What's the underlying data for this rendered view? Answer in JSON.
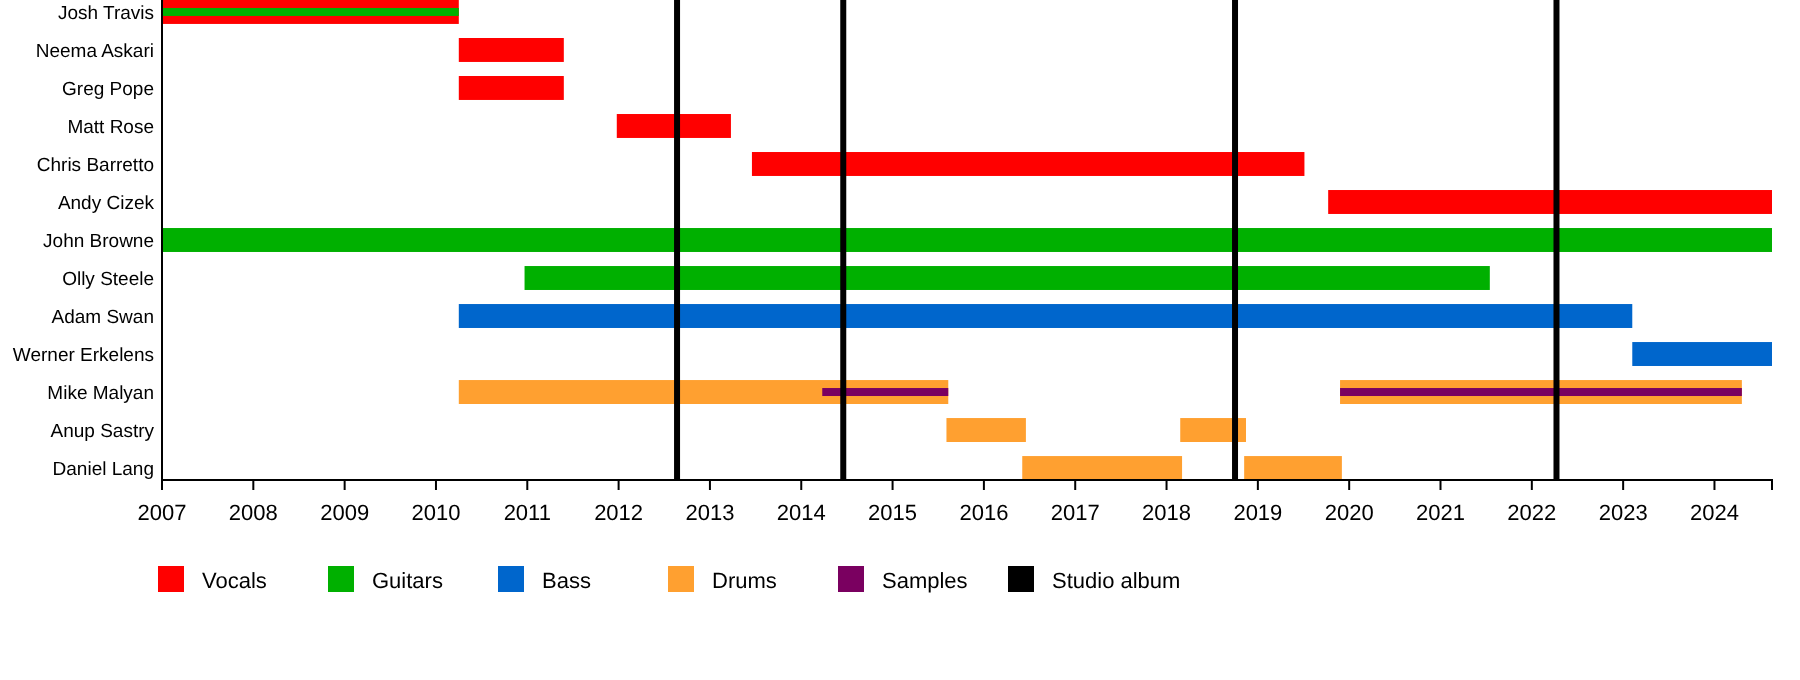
{
  "chart_data": {
    "type": "bar",
    "orientation": "horizontal",
    "categories": [
      "Josh Travis",
      "Neema Askari",
      "Greg Pope",
      "Matt Rose",
      "Chris Barretto",
      "Andy Cizek",
      "John Browne",
      "Olly Steele",
      "Adam Swan",
      "Werner Erkelens",
      "Mike Malyan",
      "Anup Sastry",
      "Daniel Lang"
    ],
    "series": [
      {
        "name": "Vocals",
        "color": "#ff0000",
        "base": [
          2007,
          2010.25,
          2010.25,
          2011.98,
          2013.46,
          2019.77,
          null,
          null,
          null,
          null,
          null,
          null,
          null
        ],
        "values": [
          3.25,
          1.15,
          1.15,
          1.25,
          6.05,
          4.86,
          null,
          null,
          null,
          null,
          null,
          null,
          null
        ]
      },
      {
        "name": "Guitars",
        "color": "#00b000",
        "base": [
          2007,
          null,
          null,
          null,
          null,
          null,
          2007,
          2010.97,
          null,
          null,
          null,
          null,
          null
        ],
        "values": [
          3.25,
          null,
          null,
          null,
          null,
          null,
          17.63,
          10.57,
          null,
          null,
          null,
          null,
          null
        ]
      },
      {
        "name": "Bass",
        "color": "#0066cc",
        "base": [
          null,
          null,
          null,
          null,
          null,
          null,
          null,
          null,
          2010.25,
          2023.1,
          null,
          null,
          null
        ],
        "values": [
          null,
          null,
          null,
          null,
          null,
          null,
          null,
          null,
          12.85,
          1.53,
          null,
          null,
          null
        ]
      },
      {
        "name": "Drums",
        "color": "#ffa030",
        "base": [
          null,
          null,
          null,
          null,
          null,
          null,
          null,
          null,
          null,
          null,
          2010.25,
          2015.59,
          2016.42
        ],
        "values": [
          null,
          null,
          null,
          null,
          null,
          null,
          null,
          null,
          null,
          null,
          5.36,
          0.87,
          1.75
        ]
      },
      {
        "color": "#ffa030",
        "base": [
          null,
          null,
          null,
          null,
          null,
          null,
          null,
          null,
          null,
          null,
          2019.9,
          2018.15,
          2018.85
        ],
        "values": [
          null,
          null,
          null,
          null,
          null,
          null,
          null,
          null,
          null,
          null,
          4.4,
          0.72,
          1.07
        ]
      },
      {
        "name": "Samples",
        "color": "#7a0060",
        "base": [
          null,
          null,
          null,
          null,
          null,
          null,
          null,
          null,
          null,
          null,
          2014.23,
          null,
          null
        ],
        "values": [
          null,
          null,
          null,
          null,
          null,
          null,
          null,
          null,
          null,
          null,
          1.38,
          null,
          null
        ]
      },
      {
        "color": "#7a0060",
        "base": [
          null,
          null,
          null,
          null,
          null,
          null,
          null,
          null,
          null,
          null,
          2019.9,
          null,
          null
        ],
        "values": [
          null,
          null,
          null,
          null,
          null,
          null,
          null,
          null,
          null,
          null,
          4.4,
          null,
          null
        ]
      }
    ],
    "xlim": [
      2007,
      2024.63
    ],
    "xticks": [
      2007,
      2008,
      2009,
      2010,
      2011,
      2012,
      2013,
      2014,
      2015,
      2016,
      2017,
      2018,
      2019,
      2020,
      2021,
      2022,
      2023,
      2024
    ],
    "ref_lines": [
      {
        "axis": "x",
        "value": 2012.64,
        "label": "Studio album",
        "color": "#000000"
      },
      {
        "axis": "x",
        "value": 2014.46,
        "color": "#000000"
      },
      {
        "axis": "x",
        "value": 2018.75,
        "color": "#000000"
      },
      {
        "axis": "x",
        "value": 2022.27,
        "color": "#000000"
      }
    ],
    "legend": "bottom"
  }
}
